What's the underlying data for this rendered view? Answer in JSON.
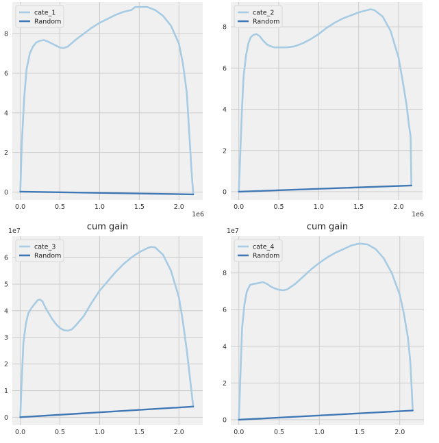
{
  "colors": {
    "cate": "#a6cbe3",
    "random": "#3f78b5"
  },
  "chart_data": [
    {
      "type": "line",
      "title": "",
      "xlabel": "",
      "ylabel": "",
      "x_scale_label": "1e6",
      "y_scale_label": "",
      "xlim": [
        -0.1,
        2.3
      ],
      "ylim": [
        -0.4,
        9.6
      ],
      "xticks": [
        0.0,
        0.5,
        1.0,
        1.5,
        2.0
      ],
      "xtick_labels": [
        "0.0",
        "0.5",
        "1.0",
        "1.5",
        "2.0"
      ],
      "yticks": [
        0,
        2,
        4,
        6,
        8
      ],
      "ytick_labels": [
        "0",
        "2",
        "4",
        "6",
        "8"
      ],
      "grid": true,
      "legend": "top-left",
      "series": [
        {
          "name": "cate_1",
          "x": [
            0,
            0.02,
            0.05,
            0.08,
            0.12,
            0.16,
            0.2,
            0.25,
            0.3,
            0.35,
            0.4,
            0.45,
            0.5,
            0.55,
            0.6,
            0.7,
            0.8,
            0.9,
            1.0,
            1.1,
            1.2,
            1.3,
            1.4,
            1.45,
            1.5,
            1.6,
            1.7,
            1.8,
            1.9,
            2.0,
            2.05,
            2.1,
            2.13,
            2.16,
            2.18
          ],
          "y": [
            0,
            2.5,
            4.8,
            6.2,
            7.0,
            7.35,
            7.55,
            7.65,
            7.68,
            7.6,
            7.5,
            7.4,
            7.3,
            7.28,
            7.35,
            7.7,
            8.0,
            8.3,
            8.55,
            8.75,
            8.95,
            9.1,
            9.2,
            9.35,
            9.35,
            9.35,
            9.2,
            8.9,
            8.4,
            7.5,
            6.5,
            5.0,
            3.0,
            1.0,
            -0.1
          ]
        },
        {
          "name": "Random",
          "x": [
            0,
            2.18
          ],
          "y": [
            0.02,
            -0.12
          ]
        }
      ]
    },
    {
      "type": "line",
      "title": "",
      "xlabel": "",
      "ylabel": "",
      "x_scale_label": "1e6",
      "y_scale_label": "",
      "xlim": [
        -0.1,
        2.3
      ],
      "ylim": [
        -0.4,
        9.2
      ],
      "xticks": [
        0.0,
        0.5,
        1.0,
        1.5,
        2.0
      ],
      "xtick_labels": [
        "0.0",
        "0.5",
        "1.0",
        "1.5",
        "2.0"
      ],
      "yticks": [
        0,
        2,
        4,
        6,
        8
      ],
      "ytick_labels": [
        "0",
        "2",
        "4",
        "6",
        "8"
      ],
      "grid": true,
      "legend": "top-left",
      "series": [
        {
          "name": "cate_2",
          "x": [
            0,
            0.02,
            0.04,
            0.06,
            0.09,
            0.12,
            0.15,
            0.18,
            0.22,
            0.26,
            0.3,
            0.35,
            0.4,
            0.45,
            0.5,
            0.6,
            0.7,
            0.8,
            0.9,
            1.0,
            1.1,
            1.2,
            1.3,
            1.4,
            1.5,
            1.6,
            1.65,
            1.7,
            1.8,
            1.9,
            2.0,
            2.05,
            2.1,
            2.13,
            2.15,
            2.16
          ],
          "y": [
            0,
            2.0,
            4.0,
            5.6,
            6.6,
            7.2,
            7.5,
            7.6,
            7.65,
            7.55,
            7.35,
            7.15,
            7.05,
            7.0,
            7.0,
            7.0,
            7.05,
            7.2,
            7.4,
            7.65,
            7.95,
            8.2,
            8.4,
            8.55,
            8.7,
            8.8,
            8.85,
            8.8,
            8.5,
            7.8,
            6.5,
            5.4,
            4.2,
            3.2,
            2.7,
            0.3
          ]
        },
        {
          "name": "Random",
          "x": [
            0,
            2.16
          ],
          "y": [
            0,
            0.3
          ]
        }
      ]
    },
    {
      "type": "line",
      "title": "cum gain",
      "xlabel": "",
      "ylabel": "",
      "x_scale_label": "",
      "y_scale_label": "1e7",
      "xlim": [
        -0.1,
        2.3
      ],
      "ylim": [
        -0.3,
        6.8
      ],
      "xticks": [
        0.0,
        0.5,
        1.0,
        1.5,
        2.0
      ],
      "xtick_labels": [
        "0.0",
        "0.5",
        "1.0",
        "1.5",
        "2.0"
      ],
      "yticks": [
        0,
        1,
        2,
        3,
        4,
        5,
        6
      ],
      "ytick_labels": [
        "0",
        "1",
        "2",
        "3",
        "4",
        "5",
        "6"
      ],
      "grid": true,
      "legend": "top-left",
      "series": [
        {
          "name": "cate_3",
          "x": [
            0,
            0.02,
            0.04,
            0.07,
            0.1,
            0.14,
            0.18,
            0.22,
            0.25,
            0.28,
            0.32,
            0.36,
            0.4,
            0.45,
            0.5,
            0.55,
            0.6,
            0.65,
            0.7,
            0.8,
            0.9,
            1.0,
            1.1,
            1.2,
            1.3,
            1.4,
            1.5,
            1.6,
            1.65,
            1.7,
            1.8,
            1.9,
            2.0,
            2.05,
            2.1,
            2.15,
            2.18
          ],
          "y": [
            0,
            1.5,
            2.8,
            3.5,
            3.9,
            4.1,
            4.25,
            4.4,
            4.42,
            4.35,
            4.1,
            3.9,
            3.7,
            3.5,
            3.35,
            3.27,
            3.25,
            3.3,
            3.45,
            3.8,
            4.3,
            4.75,
            5.1,
            5.45,
            5.75,
            6.0,
            6.2,
            6.35,
            6.4,
            6.38,
            6.1,
            5.5,
            4.5,
            3.6,
            2.5,
            1.2,
            0.4
          ]
        },
        {
          "name": "Random",
          "x": [
            0,
            2.18
          ],
          "y": [
            0,
            0.4
          ]
        }
      ]
    },
    {
      "type": "line",
      "title": "cum gain",
      "xlabel": "",
      "ylabel": "",
      "x_scale_label": "",
      "y_scale_label": "1e7",
      "xlim": [
        -0.1,
        2.3
      ],
      "ylim": [
        -0.3,
        10.0
      ],
      "xticks": [
        0.0,
        0.5,
        1.0,
        1.5,
        2.0
      ],
      "xtick_labels": [
        "0.0",
        "0.5",
        "1.0",
        "1.5",
        "2.0"
      ],
      "yticks": [
        0,
        2,
        4,
        6,
        8
      ],
      "ytick_labels": [
        "0",
        "2",
        "4",
        "6",
        "8"
      ],
      "grid": true,
      "legend": "top-left",
      "series": [
        {
          "name": "cate_4",
          "x": [
            0,
            0.02,
            0.04,
            0.07,
            0.1,
            0.14,
            0.18,
            0.22,
            0.25,
            0.3,
            0.35,
            0.4,
            0.45,
            0.5,
            0.55,
            0.6,
            0.7,
            0.8,
            0.9,
            1.0,
            1.1,
            1.2,
            1.3,
            1.4,
            1.5,
            1.6,
            1.7,
            1.8,
            1.9,
            2.0,
            2.05,
            2.1,
            2.13,
            2.15,
            2.16
          ],
          "y": [
            0,
            2.5,
            5.0,
            6.3,
            7.0,
            7.35,
            7.4,
            7.42,
            7.45,
            7.5,
            7.4,
            7.25,
            7.15,
            7.08,
            7.05,
            7.1,
            7.4,
            7.8,
            8.2,
            8.55,
            8.85,
            9.1,
            9.3,
            9.5,
            9.6,
            9.55,
            9.3,
            8.8,
            8.0,
            6.8,
            5.8,
            4.5,
            3.2,
            1.5,
            0.5
          ]
        },
        {
          "name": "Random",
          "x": [
            0,
            2.16
          ],
          "y": [
            0,
            0.5
          ]
        }
      ]
    }
  ]
}
